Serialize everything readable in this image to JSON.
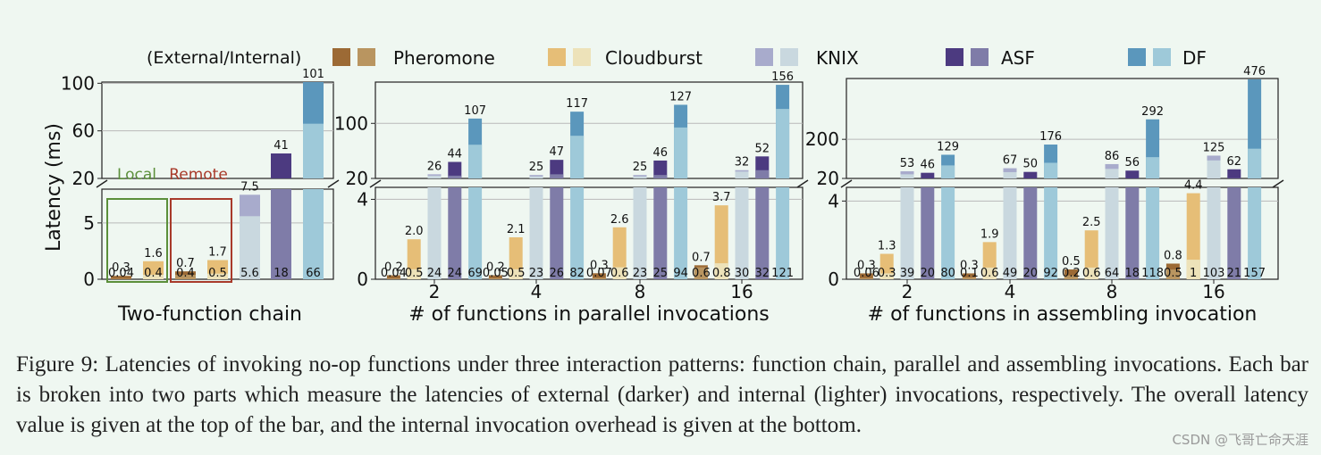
{
  "chart_data": [
    {
      "type": "bar",
      "panel": "two-function-chain",
      "xlabel": "Two-function chain",
      "ylabel": "Latency (ms)",
      "y_axis_break": "broken axis: lower segment 0-8 ms, upper segment 20-100 ms",
      "yticks_lower": [
        "0",
        "5"
      ],
      "yticks_upper": [
        "20",
        "60",
        "100"
      ],
      "annotations": [
        "Local",
        "Remote"
      ],
      "bars": [
        {
          "system": "Pheromone",
          "group": "Local",
          "total": "0.3",
          "internal": "0.04",
          "total_v": 0.3,
          "internal_v": 0.04
        },
        {
          "system": "Cloudburst",
          "group": "Local",
          "total": "1.6",
          "internal": "0.4",
          "total_v": 1.6,
          "internal_v": 0.4
        },
        {
          "system": "Pheromone",
          "group": "Remote",
          "total": "0.7",
          "internal": "0.4",
          "total_v": 0.7,
          "internal_v": 0.4
        },
        {
          "system": "Cloudburst",
          "group": "Remote",
          "total": "1.7",
          "internal": "0.5",
          "total_v": 1.7,
          "internal_v": 0.5
        },
        {
          "system": "KNIX",
          "total": "7.5",
          "internal": "5.6",
          "total_v": 7.5,
          "internal_v": 5.6
        },
        {
          "system": "ASF",
          "total": "41",
          "internal": "18",
          "total_v": 41,
          "internal_v": 18
        },
        {
          "system": "DF",
          "total": "101",
          "internal": "66",
          "total_v": 101,
          "internal_v": 66
        }
      ]
    },
    {
      "type": "bar",
      "panel": "parallel-invocations",
      "xlabel": "# of functions in parallel invocations",
      "categories": [
        "2",
        "4",
        "8",
        "16"
      ],
      "y_axis_break": "broken axis: lower segment 0-5 ms, upper segment 20-160 ms",
      "yticks_lower": [
        "0",
        "4"
      ],
      "yticks_upper": [
        "20",
        "100"
      ],
      "series": [
        {
          "name": "Pheromone",
          "total": [
            "0.2",
            "0.2",
            "0.3",
            "0.7"
          ],
          "internal": [
            "0.04",
            "0.05",
            "0.07",
            "0.6"
          ],
          "total_v": [
            0.2,
            0.2,
            0.3,
            0.7
          ],
          "internal_v": [
            0.04,
            0.05,
            0.07,
            0.6
          ]
        },
        {
          "name": "Cloudburst",
          "total": [
            "2.0",
            "2.1",
            "2.6",
            "3.7"
          ],
          "internal": [
            "0.5",
            "0.5",
            "0.6",
            "0.8"
          ],
          "total_v": [
            2.0,
            2.1,
            2.6,
            3.7
          ],
          "internal_v": [
            0.5,
            0.5,
            0.6,
            0.8
          ]
        },
        {
          "name": "KNIX",
          "total": [
            "26",
            "25",
            "25",
            "32"
          ],
          "internal": [
            "24",
            "23",
            "23",
            "30"
          ],
          "total_v": [
            26,
            25,
            25,
            32
          ],
          "internal_v": [
            24,
            23,
            23,
            30
          ]
        },
        {
          "name": "ASF",
          "total": [
            "44",
            "47",
            "46",
            "52"
          ],
          "internal": [
            "24",
            "26",
            "25",
            "32"
          ],
          "total_v": [
            44,
            47,
            46,
            52
          ],
          "internal_v": [
            24,
            26,
            25,
            32
          ]
        },
        {
          "name": "DF",
          "total": [
            "107",
            "117",
            "127",
            "156"
          ],
          "internal": [
            "69",
            "82",
            "94",
            "121"
          ],
          "total_v": [
            107,
            117,
            127,
            156
          ],
          "internal_v": [
            69,
            82,
            94,
            121
          ]
        }
      ]
    },
    {
      "type": "bar",
      "panel": "assembling-invocation",
      "xlabel": "# of functions in assembling invocation",
      "categories": [
        "2",
        "4",
        "8",
        "16"
      ],
      "y_axis_break": "broken axis: lower segment 0-5 ms, upper segment 20-480 ms",
      "yticks_lower": [
        "0",
        "4"
      ],
      "yticks_upper": [
        "20",
        "200"
      ],
      "series": [
        {
          "name": "Pheromone",
          "total": [
            "0.3",
            "0.3",
            "0.5",
            "0.8"
          ],
          "internal": [
            "0.06",
            "0.1",
            "0.2",
            "0.5"
          ],
          "total_v": [
            0.3,
            0.3,
            0.5,
            0.8
          ],
          "internal_v": [
            0.06,
            0.1,
            0.2,
            0.5
          ]
        },
        {
          "name": "Cloudburst",
          "total": [
            "1.3",
            "1.9",
            "2.5",
            "4.4"
          ],
          "internal": [
            "0.3",
            "0.6",
            "0.6",
            "1"
          ],
          "total_v": [
            1.3,
            1.9,
            2.5,
            4.4
          ],
          "internal_v": [
            0.3,
            0.6,
            0.6,
            1
          ]
        },
        {
          "name": "KNIX",
          "total": [
            "53",
            "67",
            "86",
            "125"
          ],
          "internal": [
            "39",
            "49",
            "64",
            "103"
          ],
          "total_v": [
            53,
            67,
            86,
            125
          ],
          "internal_v": [
            39,
            49,
            64,
            103
          ]
        },
        {
          "name": "ASF",
          "total": [
            "46",
            "50",
            "56",
            "62"
          ],
          "internal": [
            "20",
            "20",
            "18",
            "21"
          ],
          "total_v": [
            46,
            50,
            56,
            62
          ],
          "internal_v": [
            20,
            20,
            18,
            21
          ]
        },
        {
          "name": "DF",
          "total": [
            "129",
            "176",
            "292",
            "476"
          ],
          "internal": [
            "80",
            "92",
            "118",
            "157"
          ],
          "total_v": [
            129,
            176,
            292,
            476
          ],
          "internal_v": [
            80,
            92,
            118,
            157
          ]
        }
      ]
    }
  ],
  "legend": {
    "title": "(External/Internal)",
    "entries": [
      {
        "name": "Pheromone",
        "dark": "#9c6a35",
        "light": "#b99560"
      },
      {
        "name": "Cloudburst",
        "dark": "#e6be77",
        "light": "#ede2b9"
      },
      {
        "name": "KNIX",
        "dark": "#a8abcc",
        "light": "#c9d8df"
      },
      {
        "name": "ASF",
        "dark": "#4c3a80",
        "light": "#7f7ca8"
      },
      {
        "name": "DF",
        "dark": "#5b97bc",
        "light": "#9ec9d9"
      }
    ]
  },
  "colors": {
    "local_box": "#5b8f3a",
    "remote_box": "#a83a2a",
    "axis": "#222222",
    "grid": "#b9b9b9"
  },
  "caption": "Figure 9: Latencies of invoking no-op functions under three interaction patterns: function chain, parallel and assembling invocations. Each bar is broken into two parts which measure the latencies of external (darker) and internal (lighter) invocations, respectively. The overall latency value is given at the top of the bar, and the internal invocation overhead is given at the bottom.",
  "watermark": "CSDN @飞哥亡命天涯"
}
